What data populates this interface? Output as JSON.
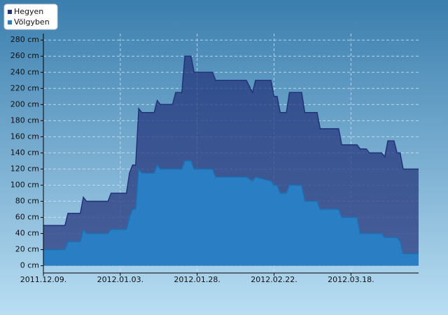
{
  "chart_data": {
    "type": "area",
    "x": [
      "2011-12-09",
      "2011-12-16",
      "2011-12-17",
      "2011-12-21",
      "2011-12-22",
      "2011-12-23",
      "2011-12-30",
      "2011-12-31",
      "2012-01-05",
      "2012-01-06",
      "2012-01-07",
      "2012-01-08",
      "2012-01-09",
      "2012-01-10",
      "2012-01-14",
      "2012-01-15",
      "2012-01-16",
      "2012-01-20",
      "2012-01-21",
      "2012-01-23",
      "2012-01-24",
      "2012-01-26",
      "2012-01-27",
      "2012-02-02",
      "2012-02-03",
      "2012-02-13",
      "2012-02-15",
      "2012-02-16",
      "2012-02-21",
      "2012-02-22",
      "2012-02-23",
      "2012-02-24",
      "2012-02-26",
      "2012-02-27",
      "2012-03-02",
      "2012-03-03",
      "2012-03-07",
      "2012-03-08",
      "2012-03-14",
      "2012-03-15",
      "2012-03-20",
      "2012-03-21",
      "2012-03-23",
      "2012-03-24",
      "2012-03-28",
      "2012-03-29",
      "2012-03-30",
      "2012-04-01",
      "2012-04-02",
      "2012-04-03",
      "2012-04-04",
      "2012-04-09"
    ],
    "series": [
      {
        "name": "Hegyen",
        "color": "#22337a",
        "values": [
          50,
          50,
          65,
          65,
          85,
          80,
          80,
          90,
          90,
          115,
          125,
          125,
          195,
          190,
          190,
          205,
          200,
          200,
          215,
          215,
          260,
          260,
          240,
          240,
          230,
          230,
          215,
          230,
          230,
          210,
          210,
          190,
          190,
          215,
          215,
          190,
          190,
          170,
          170,
          150,
          150,
          145,
          145,
          140,
          140,
          135,
          155,
          155,
          140,
          140,
          120,
          120
        ]
      },
      {
        "name": "Völgyben",
        "color": "#2a7fc4",
        "values": [
          20,
          20,
          30,
          30,
          45,
          40,
          40,
          45,
          45,
          60,
          70,
          70,
          120,
          115,
          115,
          125,
          120,
          120,
          120,
          120,
          130,
          130,
          120,
          120,
          110,
          110,
          105,
          110,
          105,
          100,
          100,
          90,
          90,
          100,
          100,
          80,
          80,
          70,
          70,
          60,
          60,
          40,
          40,
          40,
          40,
          35,
          35,
          35,
          35,
          30,
          15,
          15
        ]
      }
    ],
    "xlim": [
      "2011-12-09",
      "2012-04-09"
    ],
    "xticks": [
      {
        "value": "2011-12-09",
        "label": "2011.12.09."
      },
      {
        "value": "2012-01-03",
        "label": "2012.01.03."
      },
      {
        "value": "2012-01-28",
        "label": "2012.01.28."
      },
      {
        "value": "2012-02-22",
        "label": "2012.02.22."
      },
      {
        "value": "2012-03-18",
        "label": "2012.03.18."
      }
    ],
    "ylim": [
      -9,
      288
    ],
    "yticks": [
      {
        "value": 0,
        "label": "0 cm"
      },
      {
        "value": 20,
        "label": "20 cm"
      },
      {
        "value": 40,
        "label": "40 cm"
      },
      {
        "value": 60,
        "label": "60 cm"
      },
      {
        "value": 80,
        "label": "80 cm"
      },
      {
        "value": 100,
        "label": "100 cm"
      },
      {
        "value": 120,
        "label": "120 cm"
      },
      {
        "value": 140,
        "label": "140 cm"
      },
      {
        "value": 160,
        "label": "160 cm"
      },
      {
        "value": 180,
        "label": "180 cm"
      },
      {
        "value": 200,
        "label": "200 cm"
      },
      {
        "value": 220,
        "label": "220 cm"
      },
      {
        "value": 240,
        "label": "240 cm"
      },
      {
        "value": 260,
        "label": "260 cm"
      },
      {
        "value": 280,
        "label": "280 cm"
      }
    ],
    "grid": true,
    "legend": "top-left"
  }
}
